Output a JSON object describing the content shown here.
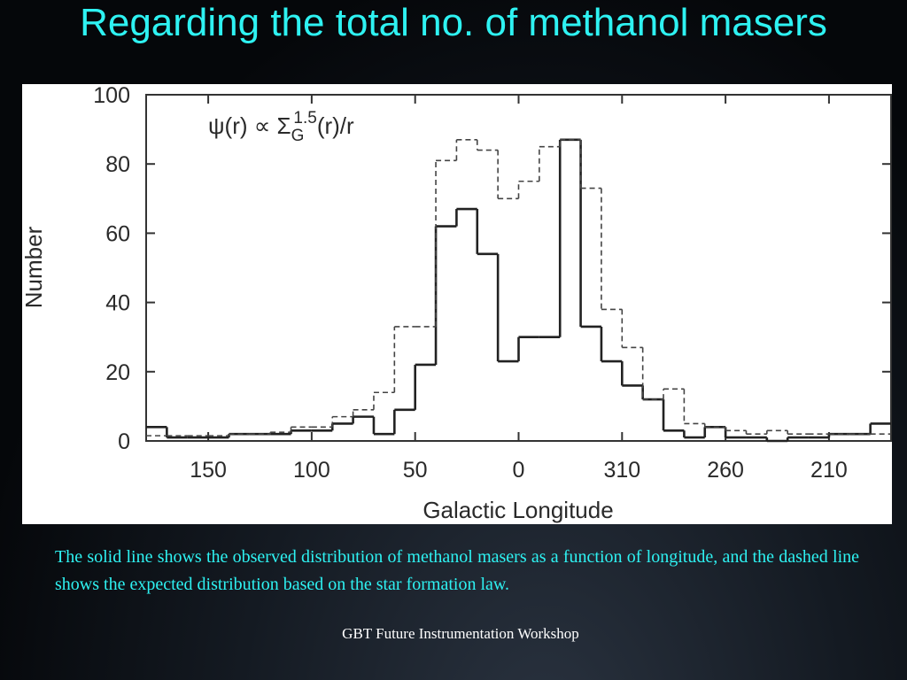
{
  "title": "Regarding the total no. of methanol masers",
  "chart_data": {
    "type": "histogram",
    "annotation": [
      "ψ(r) ∝ Σ",
      "G",
      "1.5",
      "(r)/r"
    ],
    "xlabel": "Galactic Longitude",
    "ylabel": "Number",
    "bins": [
      180,
      170,
      160,
      150,
      140,
      130,
      120,
      110,
      100,
      90,
      80,
      70,
      60,
      50,
      40,
      30,
      20,
      10,
      0,
      -10,
      -20,
      -30,
      -40,
      -50,
      -60,
      -70,
      -80,
      -90,
      -100,
      -110,
      -120,
      -130,
      -140,
      -150,
      -160,
      -170,
      -180
    ],
    "series": [
      {
        "style": "solid",
        "color": "#222222",
        "values": [
          4,
          1,
          1,
          1,
          2,
          2,
          2,
          3,
          3,
          5,
          7,
          2,
          9,
          22,
          62,
          67,
          54,
          23,
          30,
          30,
          87,
          33,
          23,
          16,
          12,
          3,
          1,
          4,
          1,
          1,
          0,
          1,
          1,
          2,
          2,
          5
        ]
      },
      {
        "style": "dashed",
        "color": "#444444",
        "values": [
          1.5,
          1.5,
          1.5,
          1.5,
          2,
          2,
          2.5,
          4,
          4,
          7,
          9,
          14,
          33,
          33,
          81,
          87,
          84,
          70,
          75,
          85,
          87,
          73,
          38,
          27,
          12,
          15,
          5,
          4,
          3,
          2,
          3,
          2,
          2,
          2,
          2,
          2
        ]
      }
    ],
    "xlim": [
      180,
      -180
    ],
    "xticks": [
      150,
      100,
      50,
      0,
      {
        "value": -50,
        "label": "310"
      },
      {
        "value": -100,
        "label": "260"
      },
      {
        "value": -150,
        "label": "210"
      }
    ],
    "ylim": [
      0,
      100
    ],
    "yticks": [
      0,
      20,
      40,
      60,
      80,
      100
    ]
  },
  "caption": "The solid line shows the observed distribution of methanol masers as a function of longitude, and the dashed line shows the expected distribution based on the star formation law.",
  "footer": "GBT Future Instrumentation Workshop"
}
